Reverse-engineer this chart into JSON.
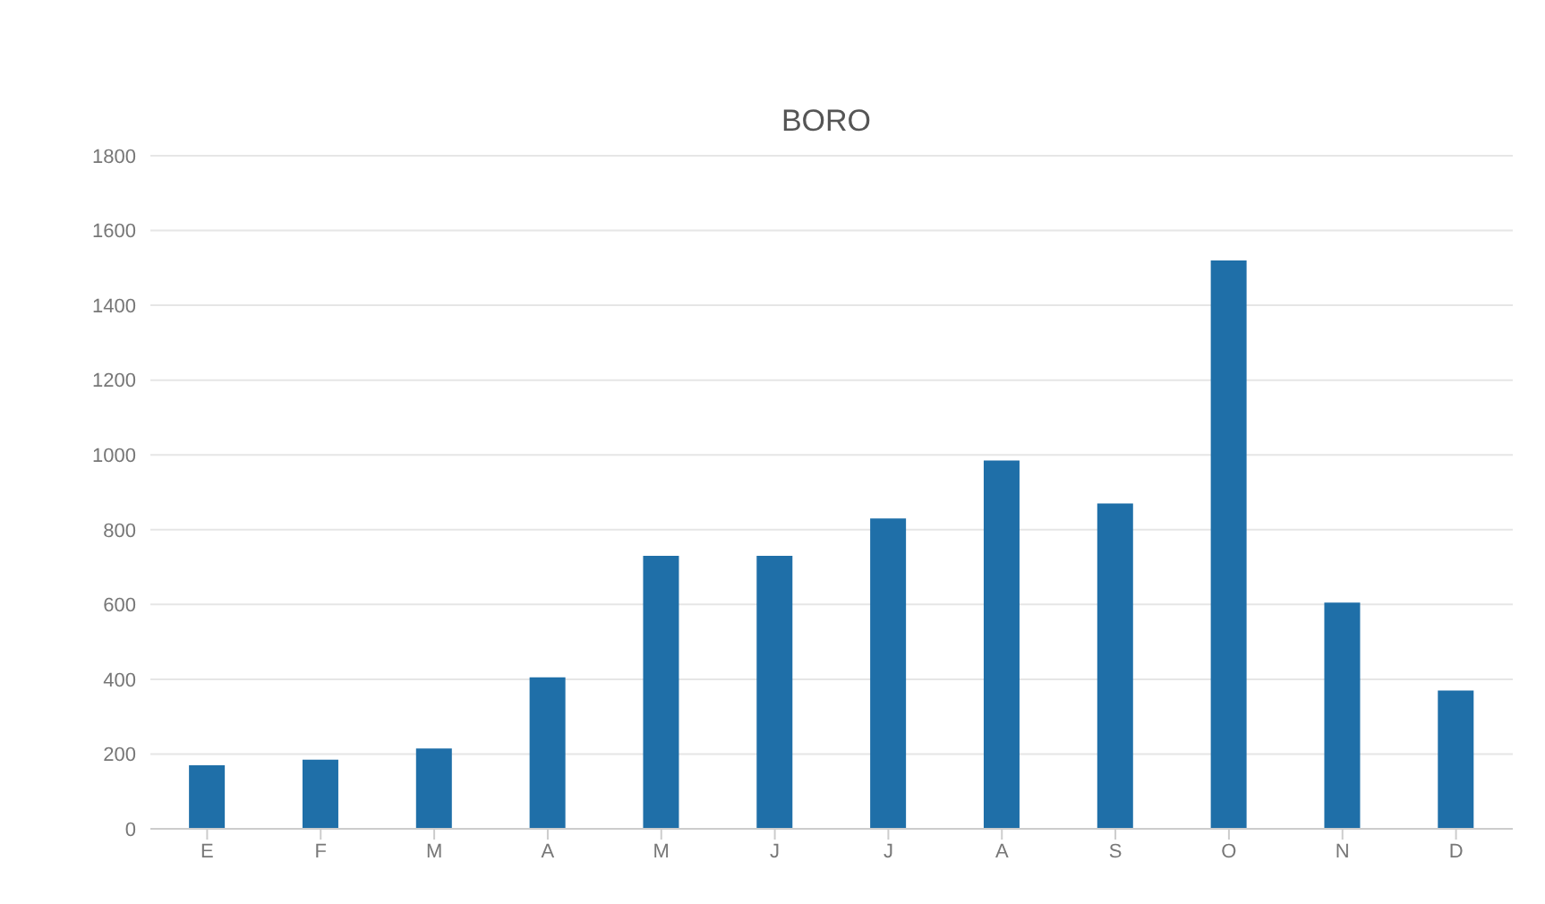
{
  "chart_data": {
    "type": "bar",
    "title": "BORO",
    "categories": [
      "E",
      "F",
      "M",
      "A",
      "M",
      "J",
      "J",
      "A",
      "S",
      "O",
      "N",
      "D"
    ],
    "values": [
      170,
      185,
      215,
      405,
      730,
      730,
      830,
      985,
      870,
      1520,
      605,
      370
    ],
    "color": "#1f6fa8",
    "ylim": [
      0,
      1800
    ],
    "yticks": [
      0,
      200,
      400,
      600,
      800,
      1000,
      1200,
      1400,
      1600,
      1800
    ],
    "grid": "y"
  }
}
